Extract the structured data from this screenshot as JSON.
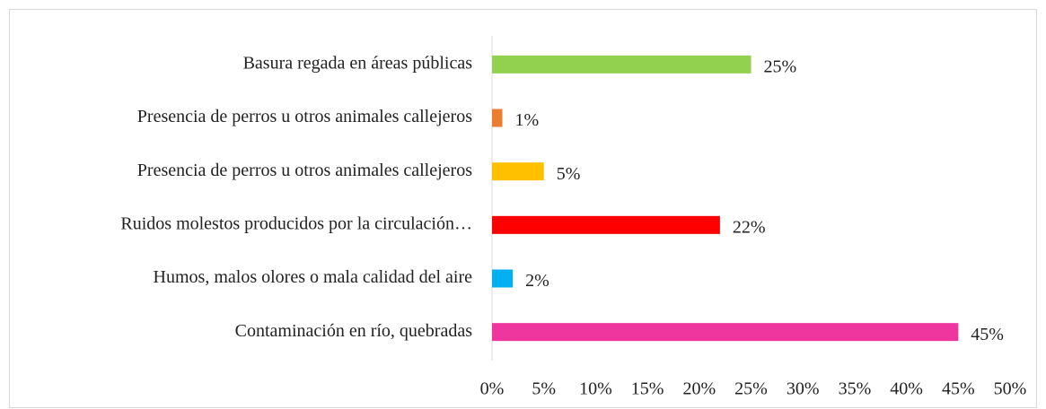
{
  "chart_data": {
    "type": "bar",
    "orientation": "horizontal",
    "categories": [
      "Basura regada en áreas públicas",
      "Presencia de perros u otros animales callejeros",
      "Presencia de perros u otros animales callejeros",
      "Ruidos molestos producidos por la circulación…",
      "Humos, malos olores o mala calidad del aire",
      "Contaminación en río, quebradas"
    ],
    "values": [
      25,
      1,
      5,
      22,
      2,
      45
    ],
    "value_labels": [
      "25%",
      "1%",
      "5%",
      "22%",
      "2%",
      "45%"
    ],
    "colors": [
      "#92d050",
      "#ed7d31",
      "#ffc000",
      "#ff0000",
      "#00b0f0",
      "#ef369f"
    ],
    "xlim": [
      0,
      50
    ],
    "xticks": [
      {
        "value": 0,
        "label": "0%"
      },
      {
        "value": 5,
        "label": "5%"
      },
      {
        "value": 10,
        "label": "10%"
      },
      {
        "value": 15,
        "label": "15%"
      },
      {
        "value": 20,
        "label": "20%"
      },
      {
        "value": 25,
        "label": "25%"
      },
      {
        "value": 30,
        "label": "30%"
      },
      {
        "value": 35,
        "label": "35%"
      },
      {
        "value": 40,
        "label": "40%"
      },
      {
        "value": 45,
        "label": "45%"
      },
      {
        "value": 50,
        "label": "50%"
      }
    ],
    "grid": false
  }
}
